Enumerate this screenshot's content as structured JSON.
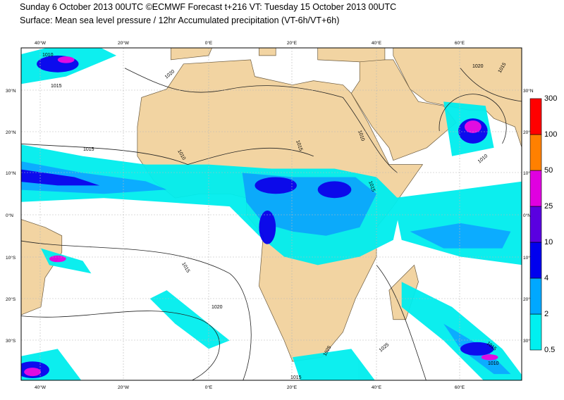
{
  "header": {
    "title": "Sunday 6 October 2013 00UTC ©ECMWF Forecast t+216 VT: Tuesday 15 October 2013 00UTC",
    "subtitle": "Surface: Mean sea level pressure / 12hr Accumulated precipitation (VT-6h/VT+6h)"
  },
  "map": {
    "longitude_labels": [
      "40°W",
      "20°W",
      "0°E",
      "20°E",
      "40°E",
      "60°E"
    ],
    "latitude_labels": [
      "30°N",
      "20°N",
      "10°N",
      "0°N",
      "10°S",
      "20°S",
      "30°S"
    ],
    "isobar_labels": [
      "1010",
      "1015",
      "1020",
      "1015",
      "1010",
      "1015",
      "1010",
      "1015",
      "1020",
      "1015",
      "1010",
      "1015",
      "1020",
      "1025",
      "1015",
      "1010",
      "1025",
      "1015"
    ]
  },
  "legend": {
    "ticks": [
      0.5,
      2,
      4,
      10,
      25,
      50,
      100,
      300
    ],
    "colors": [
      "#00f0f0",
      "#00a8ff",
      "#0000ee",
      "#5a00e0",
      "#e000e0",
      "#ff8000",
      "#ff0000"
    ]
  }
}
